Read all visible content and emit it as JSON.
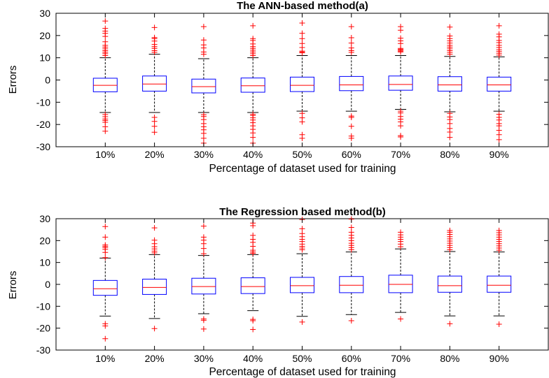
{
  "colors": {
    "box": "#0000ff",
    "median": "#ff0000",
    "outlier": "#ff0000",
    "whisker": "#000000",
    "axis": "#000000"
  },
  "chart_data": [
    {
      "type": "box",
      "title": "The ANN-based method(a)",
      "xlabel": "Percentage of dataset used for training",
      "ylabel": "Errors",
      "ylim": [
        -30,
        30
      ],
      "yticks": [
        -30,
        -20,
        -10,
        0,
        10,
        20,
        30
      ],
      "grid": false,
      "categories": [
        "10%",
        "20%",
        "30%",
        "40%",
        "50%",
        "60%",
        "70%",
        "80%",
        "90%"
      ],
      "boxes": [
        {
          "q1": -5.3,
          "median": -2.4,
          "q3": 0.8,
          "whisker_low": -14.6,
          "whisker_high": 10.0,
          "outliers_low": [
            -15.5,
            -16.5,
            -17.5,
            -18.2,
            -19.0,
            -21.0,
            -23.0
          ],
          "outliers_high": [
            11.0,
            11.8,
            12.5,
            13.2,
            14.0,
            14.8,
            15.6,
            17.2,
            19.6,
            21.0,
            22.0,
            23.2,
            26.5
          ]
        },
        {
          "q1": -5.0,
          "median": -1.8,
          "q3": 1.8,
          "whisker_low": -14.6,
          "whisker_high": 11.6,
          "outliers_low": [
            -16.8,
            -18.6,
            -20.8,
            -23.5
          ],
          "outliers_high": [
            12.4,
            13.2,
            14.2,
            15.0,
            16.0,
            17.5,
            18.6,
            19.1,
            23.6
          ]
        },
        {
          "q1": -5.8,
          "median": -3.0,
          "q3": 0.4,
          "whisker_low": -14.6,
          "whisker_high": 9.6,
          "outliers_low": [
            -15.6,
            -16.4,
            -17.8,
            -19.6,
            -21.0,
            -22.4,
            -24.0,
            -26.2,
            -28.4
          ],
          "outliers_high": [
            11.6,
            12.6,
            14.4,
            15.8,
            18.0,
            24.0
          ]
        },
        {
          "q1": -5.5,
          "median": -2.6,
          "q3": 0.9,
          "whisker_low": -14.6,
          "whisker_high": 10.0,
          "outliers_low": [
            -15.4,
            -16.0,
            -17.0,
            -18.0,
            -19.2,
            -20.6,
            -22.2,
            -23.8,
            -25.8,
            -28.4
          ],
          "outliers_high": [
            11.0,
            11.8,
            12.6,
            13.4,
            14.2,
            15.0,
            16.2,
            17.8,
            18.6,
            24.4
          ]
        },
        {
          "q1": -5.2,
          "median": -2.4,
          "q3": 1.3,
          "whisker_low": -14.0,
          "whisker_high": 11.0,
          "outliers_low": [
            -15.0,
            -17.0,
            -18.8,
            -24.6,
            -26.2
          ],
          "outliers_high": [
            12.2,
            12.6,
            13.0,
            14.6,
            16.4,
            18.6,
            21.0,
            25.6
          ]
        },
        {
          "q1": -4.8,
          "median": -2.2,
          "q3": 1.6,
          "whisker_low": -14.0,
          "whisker_high": 11.0,
          "outliers_low": [
            -16.2,
            -16.8,
            -20.8,
            -25.2,
            -26.2
          ],
          "outliers_high": [
            12.4,
            13.2,
            14.4,
            16.6,
            19.0,
            24.0
          ]
        },
        {
          "q1": -4.6,
          "median": -2.0,
          "q3": 1.8,
          "whisker_low": -13.2,
          "whisker_high": 11.0,
          "outliers_low": [
            -14.0,
            -14.8,
            -16.4,
            -17.6,
            -18.8,
            -20.6,
            -25.0,
            -25.6
          ],
          "outliers_high": [
            12.6,
            13.0,
            13.4,
            13.8,
            14.2,
            16.4,
            17.6,
            18.8,
            22.4,
            24.0
          ]
        },
        {
          "q1": -5.0,
          "median": -2.2,
          "q3": 1.5,
          "whisker_low": -14.3,
          "whisker_high": 10.6,
          "outliers_low": [
            -15.0,
            -16.6,
            -17.8,
            -19.6,
            -21.8,
            -23.4,
            -25.8
          ],
          "outliers_high": [
            11.6,
            12.4,
            13.2,
            14.0,
            14.8,
            15.6,
            16.6,
            17.6,
            18.6,
            19.8,
            23.8
          ]
        },
        {
          "q1": -5.0,
          "median": -2.2,
          "q3": 1.3,
          "whisker_low": -14.0,
          "whisker_high": 10.4,
          "outliers_low": [
            -15.4,
            -16.8,
            -18.0,
            -19.6,
            -20.6,
            -22.6,
            -24.6,
            -26.8
          ],
          "outliers_high": [
            11.2,
            12.0,
            12.8,
            13.6,
            14.6,
            15.6,
            16.8,
            17.8,
            19.4,
            20.6,
            24.4
          ]
        }
      ]
    },
    {
      "type": "box",
      "title": "The Regression based method(b)",
      "xlabel": "Percentage of dataset used for training",
      "ylabel": "Errors",
      "ylim": [
        -30,
        30
      ],
      "yticks": [
        -30,
        -20,
        -10,
        0,
        10,
        20,
        30
      ],
      "grid": false,
      "categories": [
        "10%",
        "20%",
        "30%",
        "40%",
        "50%",
        "60%",
        "70%",
        "80%",
        "90%"
      ],
      "boxes": [
        {
          "q1": -5.0,
          "median": -2.0,
          "q3": 1.8,
          "whisker_low": -14.5,
          "whisker_high": 12.0,
          "outliers_low": [
            -18.0,
            -19.0,
            -24.8
          ],
          "outliers_high": [
            12.2,
            14.6,
            16.0,
            16.8,
            17.4,
            18.0,
            21.6,
            26.4
          ]
        },
        {
          "q1": -4.6,
          "median": -1.4,
          "q3": 2.4,
          "whisker_low": -15.6,
          "whisker_high": 13.6,
          "outliers_low": [
            -20.2
          ],
          "outliers_high": [
            14.4,
            15.2,
            16.2,
            17.2,
            18.6,
            20.2,
            25.8
          ]
        },
        {
          "q1": -4.4,
          "median": -1.0,
          "q3": 2.8,
          "whisker_low": -13.4,
          "whisker_high": 13.2,
          "outliers_low": [
            -15.8,
            -16.4,
            -20.4
          ],
          "outliers_high": [
            14.0,
            16.4,
            18.6,
            20.2,
            21.6,
            26.6
          ]
        },
        {
          "q1": -4.2,
          "median": -1.0,
          "q3": 3.0,
          "whisker_low": -12.0,
          "whisker_high": 13.6,
          "outliers_low": [
            -16.0,
            -16.6,
            -20.6
          ],
          "outliers_high": [
            14.2,
            14.8,
            15.6,
            17.4,
            19.2,
            20.6,
            22.4,
            26.8,
            28.0
          ]
        },
        {
          "q1": -3.8,
          "median": -0.6,
          "q3": 3.2,
          "whisker_low": -14.6,
          "whisker_high": 14.0,
          "outliers_low": [
            -17.2
          ],
          "outliers_high": [
            15.8,
            16.6,
            17.4,
            18.4,
            19.6,
            20.6,
            21.8,
            23.2,
            25.4,
            29.6
          ]
        },
        {
          "q1": -3.8,
          "median": -0.4,
          "q3": 3.6,
          "whisker_low": -13.8,
          "whisker_high": 14.8,
          "outliers_low": [
            -16.6
          ],
          "outliers_high": [
            15.8,
            16.8,
            17.8,
            18.8,
            20.0,
            21.2,
            22.4,
            23.8,
            26.0,
            29.8
          ]
        },
        {
          "q1": -3.8,
          "median": 0.0,
          "q3": 4.2,
          "whisker_low": -12.8,
          "whisker_high": 16.2,
          "outliers_low": [
            -15.8
          ],
          "outliers_high": [
            17.2,
            18.4,
            19.6,
            20.6,
            21.6,
            22.6,
            23.8
          ]
        },
        {
          "q1": -3.6,
          "median": -0.6,
          "q3": 3.8,
          "whisker_low": -14.4,
          "whisker_high": 15.0,
          "outliers_low": [
            -18.0
          ],
          "outliers_high": [
            15.8,
            16.8,
            17.8,
            18.8,
            19.8,
            20.8,
            21.8,
            22.8,
            23.8,
            24.6
          ]
        },
        {
          "q1": -3.6,
          "median": -0.4,
          "q3": 3.8,
          "whisker_low": -14.4,
          "whisker_high": 14.8,
          "outliers_low": [
            -18.2
          ],
          "outliers_high": [
            15.6,
            16.6,
            17.6,
            18.6,
            19.6,
            20.6,
            21.6,
            22.6,
            23.6,
            24.6
          ]
        }
      ]
    }
  ]
}
